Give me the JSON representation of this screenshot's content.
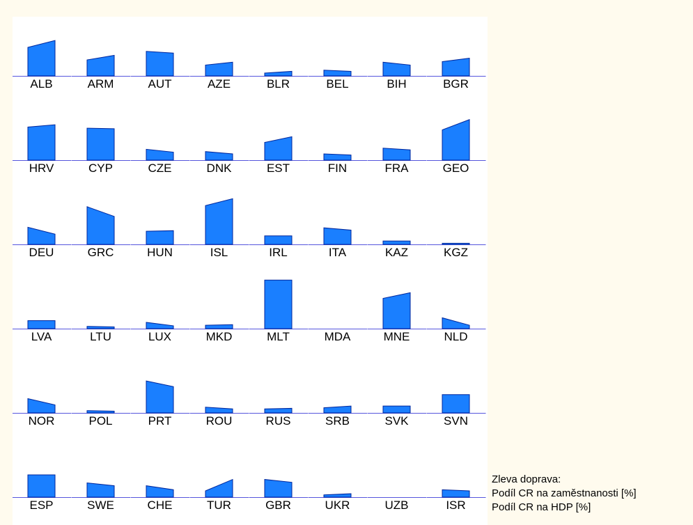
{
  "colors": {
    "fill": "#1a7fff",
    "stroke": "#00269b",
    "baseline": "#5555dd",
    "panel": "#ffffff",
    "page": "#fffbee"
  },
  "legend": {
    "heading": "Zleva doprava:",
    "line1": "Podíl CR na zaměstnanosti [%]",
    "line2": "Podíl CR na HDP [%]"
  },
  "chart_data": {
    "type": "bar",
    "layout": "small-multiples",
    "scale_max": 100,
    "series": [
      {
        "name": "Podíl CR na zaměstnanosti [%]"
      },
      {
        "name": "Podíl CR na HDP [%]"
      }
    ],
    "categories": [
      "ALB",
      "ARM",
      "AUT",
      "AZE",
      "BLR",
      "BEL",
      "BIH",
      "BGR",
      "HRV",
      "CYP",
      "CZE",
      "DNK",
      "EST",
      "FIN",
      "FRA",
      "GEO",
      "DEU",
      "GRC",
      "HUN",
      "ISL",
      "IRL",
      "ITA",
      "KAZ",
      "KGZ",
      "LVA",
      "LTU",
      "LUX",
      "MKD",
      "MLT",
      "MDA",
      "MNE",
      "NLD",
      "NOR",
      "POL",
      "PRT",
      "ROU",
      "RUS",
      "SRB",
      "SVK",
      "SVN",
      "ESP",
      "SWE",
      "CHE",
      "TUR",
      "GBR",
      "UKR",
      "UZB",
      "ISR"
    ],
    "values": [
      [
        50,
        62
      ],
      [
        28,
        36
      ],
      [
        43,
        40
      ],
      [
        19,
        24
      ],
      [
        5,
        8
      ],
      [
        10,
        8
      ],
      [
        24,
        19
      ],
      [
        25,
        31
      ],
      [
        58,
        62
      ],
      [
        56,
        55
      ],
      [
        19,
        14
      ],
      [
        15,
        11
      ],
      [
        31,
        41
      ],
      [
        11,
        9
      ],
      [
        21,
        18
      ],
      [
        53,
        71
      ],
      [
        30,
        18
      ],
      [
        66,
        49
      ],
      [
        23,
        24
      ],
      [
        68,
        80
      ],
      [
        15,
        15
      ],
      [
        29,
        25
      ],
      [
        6,
        6
      ],
      [
        2,
        2
      ],
      [
        14,
        14
      ],
      [
        4,
        3
      ],
      [
        11,
        5
      ],
      [
        6,
        7
      ],
      [
        85,
        85
      ],
      [
        0,
        0
      ],
      [
        53,
        63
      ],
      [
        19,
        6
      ],
      [
        25,
        14
      ],
      [
        4,
        3
      ],
      [
        56,
        46
      ],
      [
        10,
        7
      ],
      [
        7,
        8
      ],
      [
        9,
        12
      ],
      [
        12,
        12
      ],
      [
        32,
        32
      ],
      [
        39,
        39
      ],
      [
        25,
        20
      ],
      [
        20,
        13
      ],
      [
        11,
        31
      ],
      [
        31,
        26
      ],
      [
        4,
        6
      ],
      [
        0,
        0
      ],
      [
        13,
        11
      ]
    ]
  }
}
